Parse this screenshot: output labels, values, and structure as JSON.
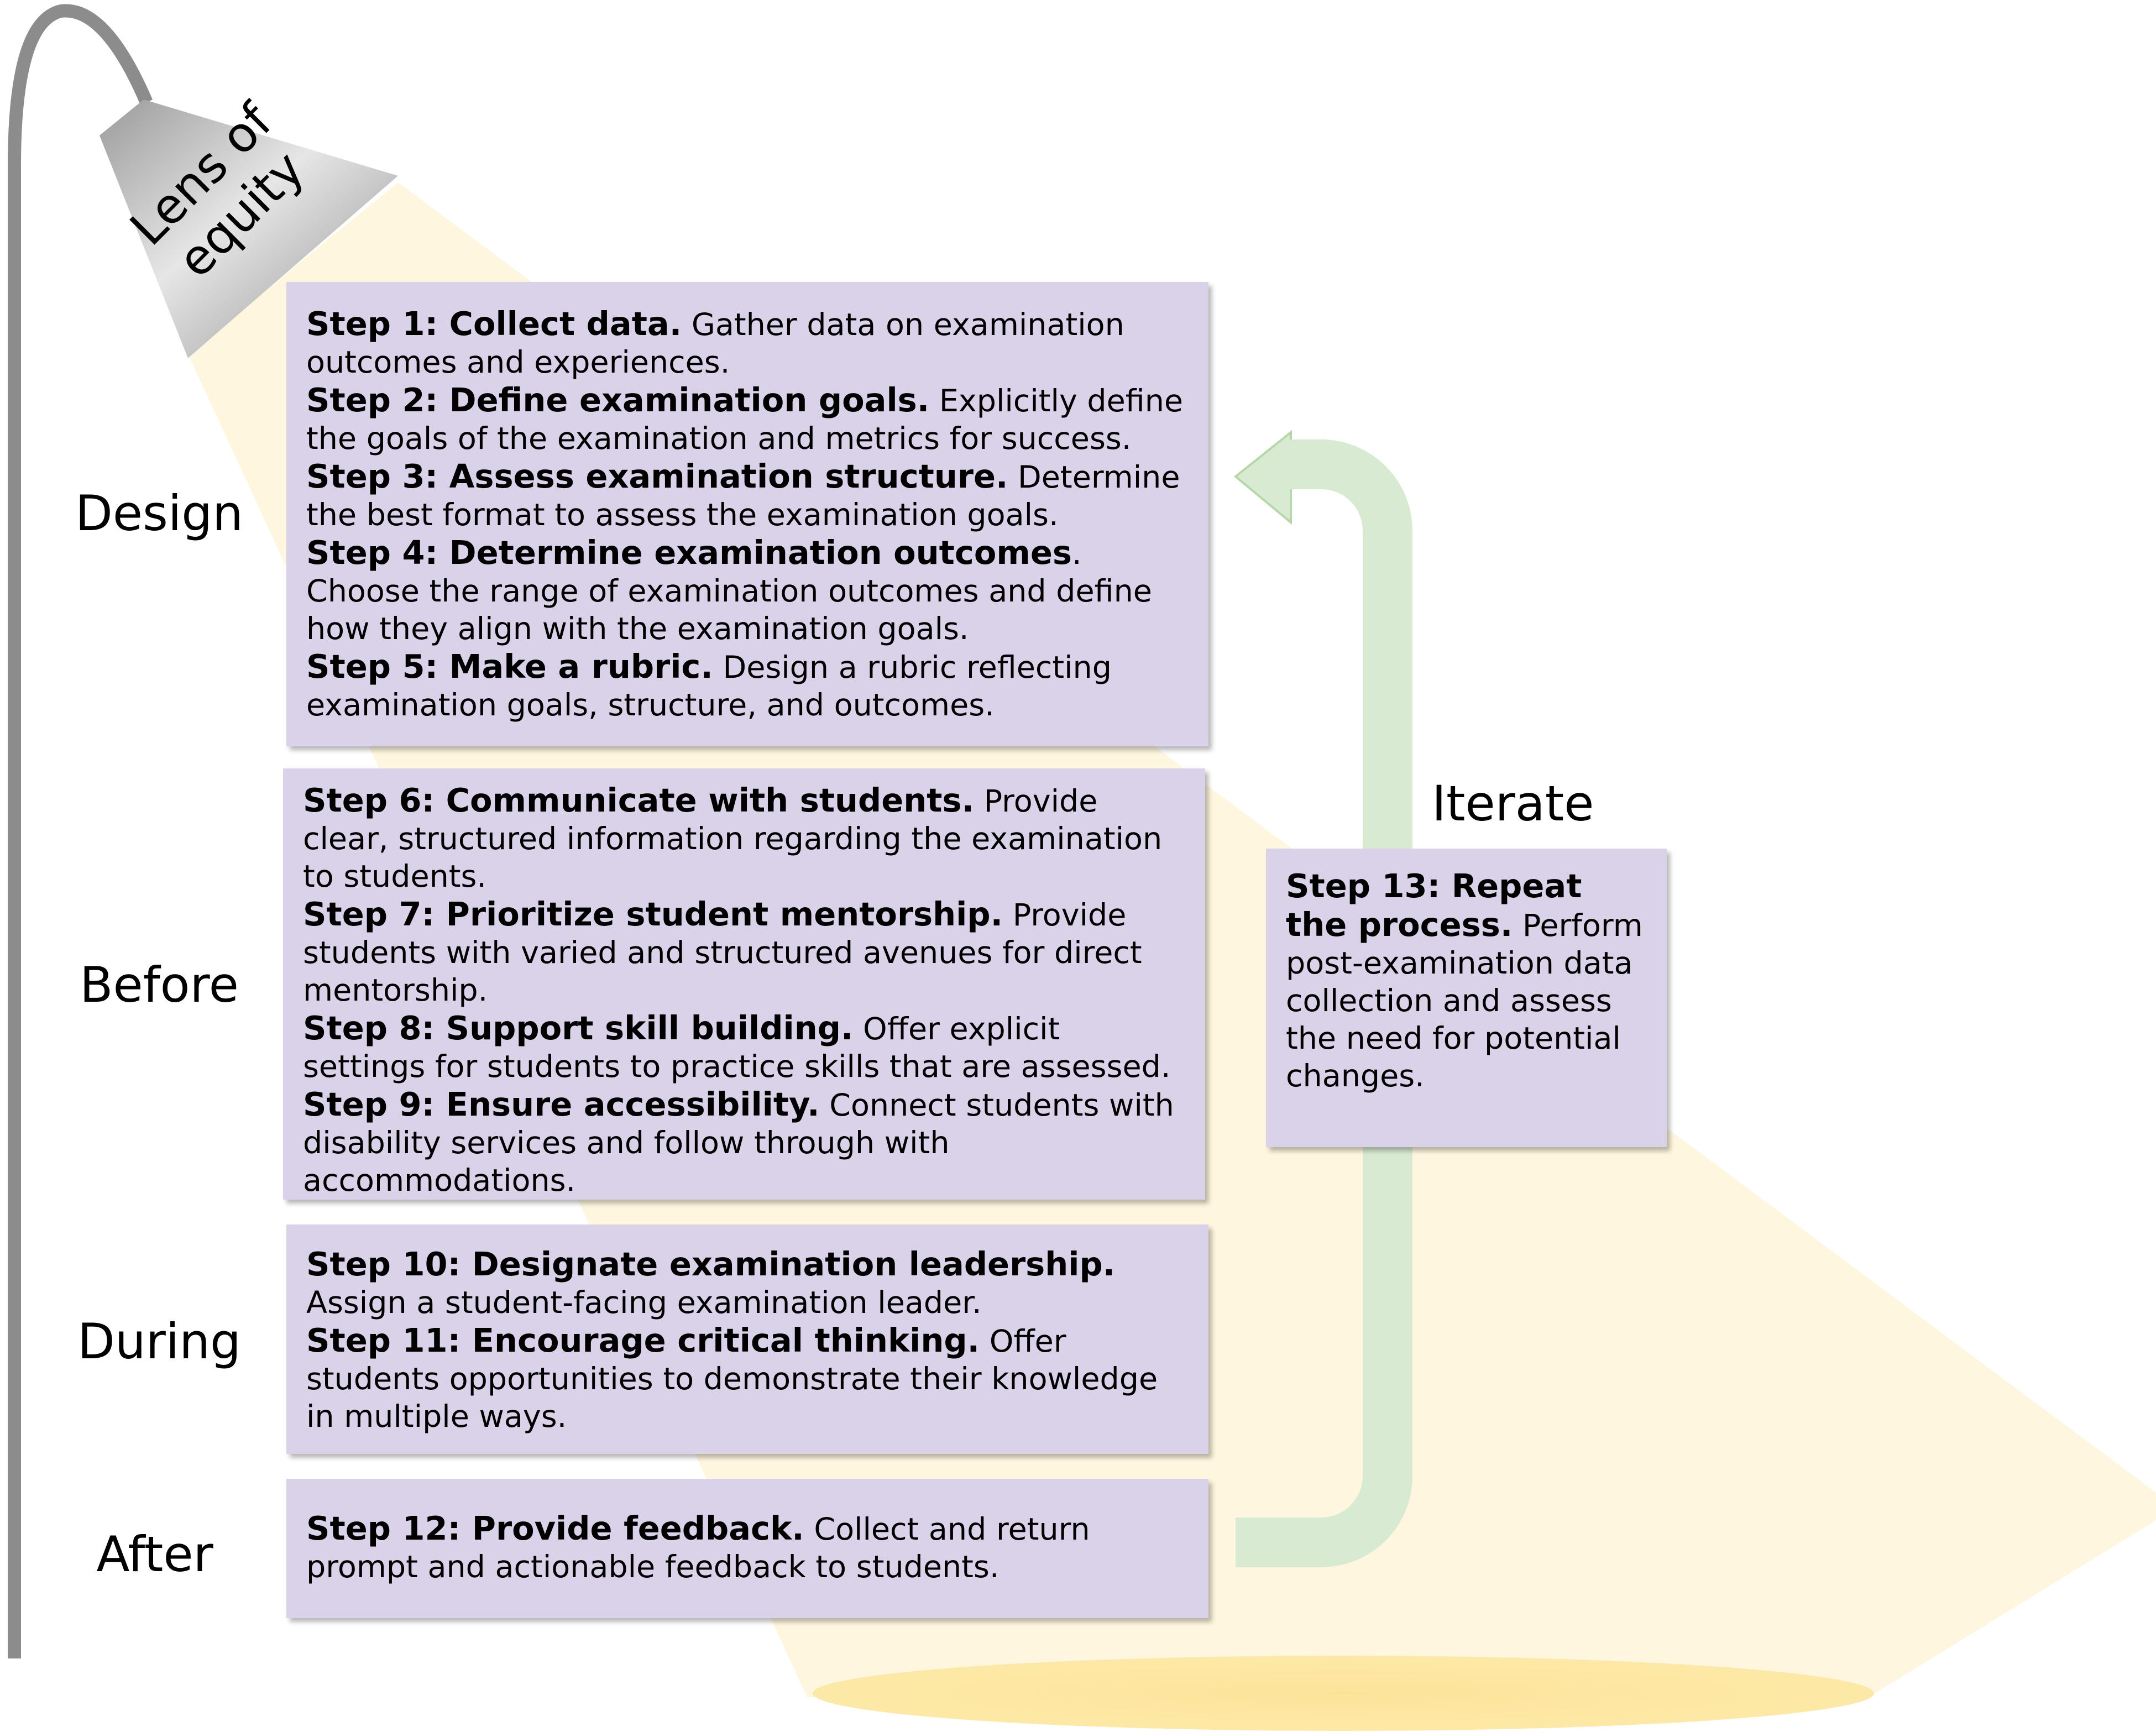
{
  "lens": {
    "line1": "Lens of",
    "line2": "equity"
  },
  "phases": {
    "design": "Design",
    "before": "Before",
    "during": "During",
    "after": "After"
  },
  "iterate": "Iterate",
  "steps": [
    {
      "title": "Step 1: Collect data.",
      "text": " Gather data on examination outcomes and experiences."
    },
    {
      "title": "Step 2: Define examination goals.",
      "text": " Explicitly define the goals of the examination and metrics for success."
    },
    {
      "title": "Step 3: Assess examination structure.",
      "text": " Determine the best format to assess the examination goals."
    },
    {
      "title": "Step 4: Determine examination outcomes",
      "text": ". Choose the range of examination outcomes and define how they align with the examination goals."
    },
    {
      "title": "Step 5: Make a rubric.",
      "text": " Design a rubric reflecting examination goals, structure, and outcomes."
    },
    {
      "title": "Step 6: Communicate with students.",
      "text": " Provide clear, structured information regarding the examination to students."
    },
    {
      "title": "Step 7: Prioritize student mentorship.",
      "text": " Provide students with varied and structured avenues for direct mentorship."
    },
    {
      "title": "Step 8: Support skill building.",
      "text": " Offer explicit settings for students to practice skills that are assessed."
    },
    {
      "title": "Step 9: Ensure accessibility.",
      "text": " Connect students with disability services and follow through with accommodations."
    },
    {
      "title": "Step 10: Designate examination leadership.",
      "text": " Assign a student-facing examination leader."
    },
    {
      "title": "Step 11: Encourage critical thinking.",
      "text": " Offer students opportunities to demonstrate their knowledge in multiple ways."
    },
    {
      "title": "Step 12: Provide feedback.",
      "text": " Collect and return prompt and actionable feedback to students."
    },
    {
      "title": "Step 13: Repeat the process.",
      "text": " Perform post-examination data collection and assess the need for potential changes."
    }
  ],
  "colors": {
    "box_fill": "#d9d2e9",
    "light_beam": "#fef7e2",
    "light_pool": "#fde9a7",
    "lamp_pole": "#8c8c8c",
    "iterate_arrow": "#d9ead3"
  }
}
